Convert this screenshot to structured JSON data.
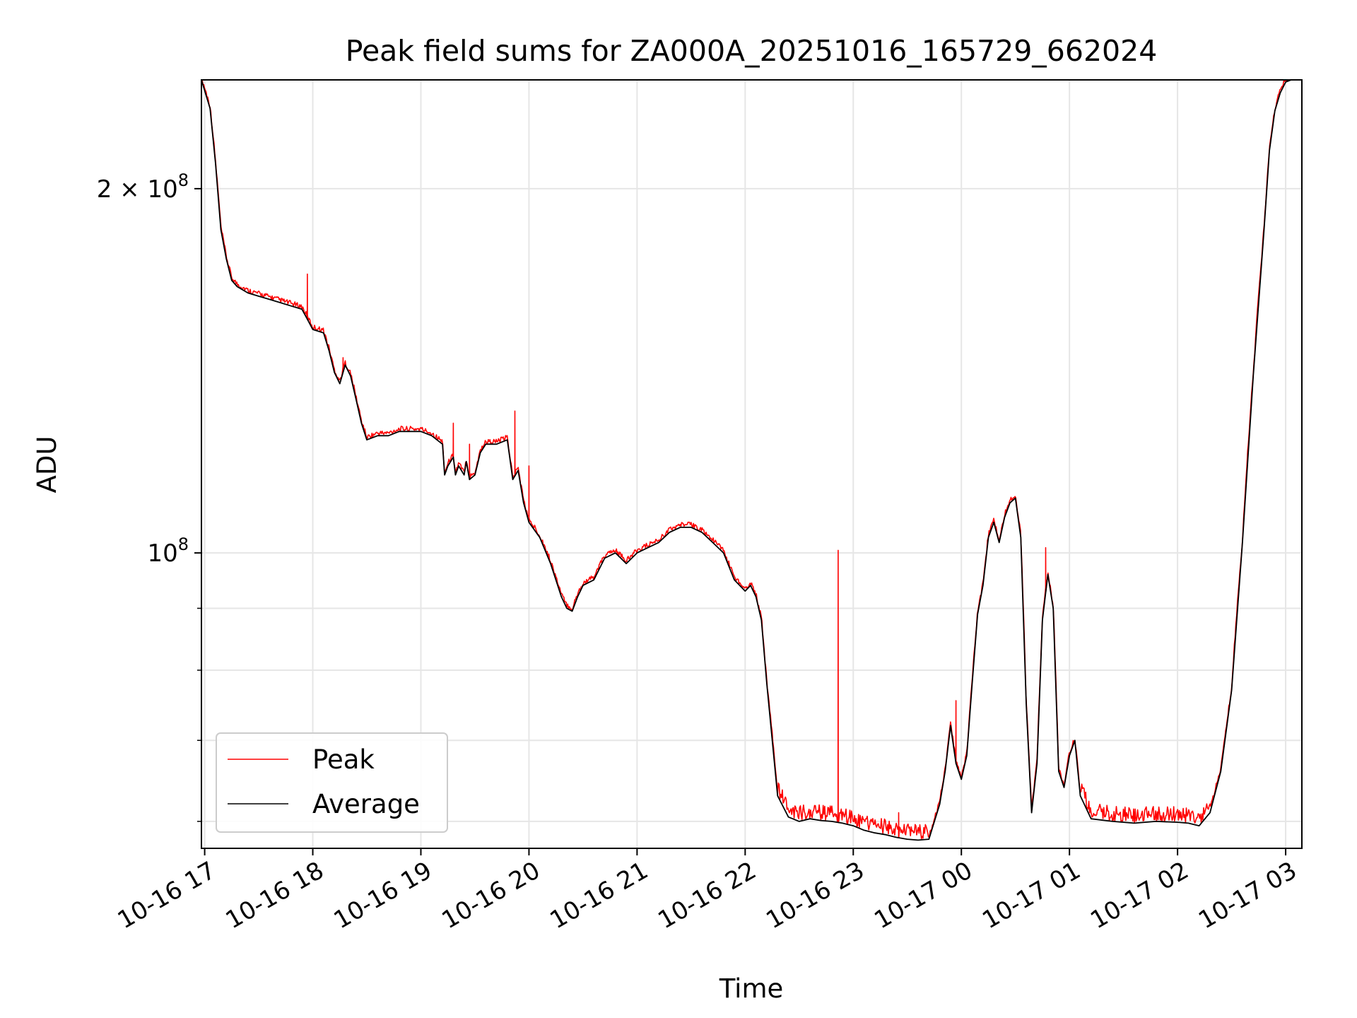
{
  "chart_data": {
    "type": "line",
    "title": "Peak field sums for ZA000A_20251016_165729_662024",
    "xlabel": "Time",
    "ylabel": "ADU",
    "y_scale": "log",
    "xlim_hours": [
      16.97,
      27.15
    ],
    "ylim": [
      57000000,
      246000000
    ],
    "grid": true,
    "legend_location": "lower left",
    "x_tick_labels": [
      "10-16 17",
      "10-16 18",
      "10-16 19",
      "10-16 20",
      "10-16 21",
      "10-16 22",
      "10-16 23",
      "10-17 00",
      "10-17 01",
      "10-17 02",
      "10-17 03"
    ],
    "x_tick_hours": [
      17,
      18,
      19,
      20,
      21,
      22,
      23,
      24,
      25,
      26,
      27
    ],
    "y_major_ticks": [
      {
        "value": 100000000,
        "base": "10",
        "exp": "8",
        "coef": ""
      },
      {
        "value": 200000000,
        "base": "10",
        "exp": "8",
        "coef": "2 × "
      }
    ],
    "y_minor_ticks": [
      60000000,
      70000000,
      80000000,
      90000000
    ],
    "series": [
      {
        "name": "Peak",
        "color": "#ff0000",
        "spikes": [
          {
            "hour": 17.95,
            "value": 170000000
          },
          {
            "hour": 18.28,
            "value": 145000000
          },
          {
            "hour": 19.3,
            "value": 128000000
          },
          {
            "hour": 19.45,
            "value": 123000000
          },
          {
            "hour": 19.87,
            "value": 131000000
          },
          {
            "hour": 20.0,
            "value": 118000000
          },
          {
            "hour": 22.86,
            "value": 100500000
          },
          {
            "hour": 23.42,
            "value": 61000000
          },
          {
            "hour": 23.95,
            "value": 75500000
          },
          {
            "hour": 24.78,
            "value": 101000000
          }
        ]
      },
      {
        "name": "Average",
        "color": "#000000",
        "hours": [
          16.97,
          17.05,
          17.1,
          17.15,
          17.2,
          17.25,
          17.3,
          17.4,
          17.5,
          17.6,
          17.7,
          17.8,
          17.9,
          17.95,
          18.0,
          18.1,
          18.15,
          18.2,
          18.25,
          18.3,
          18.35,
          18.4,
          18.45,
          18.5,
          18.6,
          18.7,
          18.8,
          18.9,
          19.0,
          19.1,
          19.2,
          19.22,
          19.25,
          19.3,
          19.32,
          19.35,
          19.4,
          19.42,
          19.45,
          19.5,
          19.55,
          19.6,
          19.7,
          19.8,
          19.85,
          19.9,
          19.95,
          20.0,
          20.1,
          20.2,
          20.3,
          20.35,
          20.4,
          20.45,
          20.5,
          20.6,
          20.7,
          20.8,
          20.9,
          21.0,
          21.1,
          21.2,
          21.3,
          21.4,
          21.5,
          21.6,
          21.7,
          21.8,
          21.9,
          22.0,
          22.05,
          22.1,
          22.15,
          22.2,
          22.3,
          22.4,
          22.5,
          22.6,
          22.7,
          22.8,
          22.9,
          23.0,
          23.1,
          23.2,
          23.3,
          23.4,
          23.5,
          23.6,
          23.7,
          23.8,
          23.85,
          23.9,
          23.95,
          24.0,
          24.05,
          24.1,
          24.15,
          24.2,
          24.25,
          24.3,
          24.35,
          24.4,
          24.45,
          24.5,
          24.55,
          24.6,
          24.65,
          24.7,
          24.75,
          24.8,
          24.85,
          24.9,
          24.95,
          25.0,
          25.05,
          25.1,
          25.2,
          25.4,
          25.6,
          25.8,
          26.0,
          26.1,
          26.2,
          26.3,
          26.4,
          26.5,
          26.6,
          26.7,
          26.8,
          26.85,
          26.9,
          26.95,
          27.0,
          27.05,
          27.15
        ],
        "values": [
          246000000,
          233000000,
          210000000,
          185000000,
          175000000,
          168000000,
          166000000,
          164000000,
          163000000,
          162000000,
          161000000,
          160000000,
          159000000,
          156000000,
          153000000,
          152000000,
          147000000,
          141000000,
          138000000,
          143000000,
          140000000,
          134000000,
          128000000,
          124000000,
          125000000,
          125000000,
          126000000,
          126000000,
          126000000,
          125000000,
          123000000,
          116000000,
          118000000,
          120000000,
          116000000,
          118000000,
          116000000,
          119000000,
          115000000,
          116000000,
          121000000,
          123000000,
          123000000,
          124000000,
          115000000,
          117000000,
          110000000,
          106000000,
          103000000,
          98000000,
          92000000,
          90000000,
          89500000,
          92000000,
          94000000,
          95000000,
          99000000,
          100000000,
          98000000,
          100000000,
          101000000,
          102000000,
          104000000,
          105000000,
          105000000,
          104000000,
          102000000,
          100000000,
          95000000,
          93000000,
          94000000,
          92000000,
          88000000,
          78000000,
          63000000,
          60500000,
          60000000,
          60300000,
          60100000,
          60000000,
          59800000,
          59500000,
          59000000,
          58700000,
          58500000,
          58200000,
          58000000,
          57900000,
          58000000,
          62000000,
          66000000,
          72000000,
          67000000,
          65000000,
          68000000,
          78000000,
          89000000,
          94000000,
          103000000,
          106000000,
          102000000,
          107000000,
          110000000,
          111000000,
          103000000,
          75000000,
          61000000,
          67000000,
          88000000,
          96000000,
          90000000,
          66000000,
          64000000,
          68000000,
          70000000,
          63000000,
          60300000,
          60000000,
          59800000,
          60000000,
          59900000,
          59800000,
          59500000,
          61000000,
          66000000,
          77000000,
          102000000,
          140000000,
          185000000,
          215000000,
          232000000,
          240000000,
          245000000,
          246000000,
          246000000
        ]
      }
    ]
  }
}
